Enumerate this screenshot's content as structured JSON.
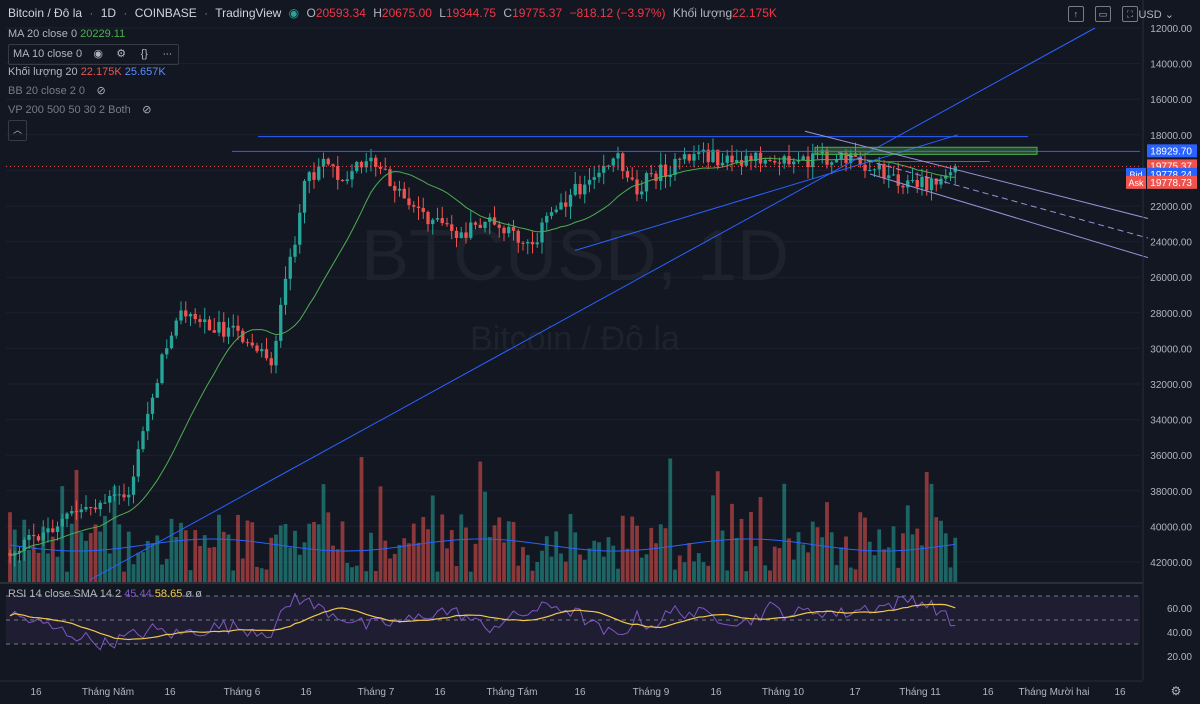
{
  "header": {
    "symbol": "Bitcoin / Đô la",
    "interval": "1D",
    "exchange": "COINBASE",
    "provider": "TradingView",
    "open_label": "O",
    "open": "20593.34",
    "high_label": "H",
    "high": "20675.00",
    "low_label": "L",
    "low": "19344.75",
    "close_label": "C",
    "close": "19775.37",
    "change": "−818.12 (−3.97%)",
    "volume_label": "Khối lượng",
    "volume": "22.175K",
    "currency": "USD"
  },
  "indicators": {
    "ma20": {
      "label": "MA 20 close 0",
      "value": "20229.11"
    },
    "ma10": {
      "label": "MA 10 close 0"
    },
    "vol": {
      "label": "Khối lượng 20",
      "v1": "22.175K",
      "v2": "25.657K"
    },
    "bb": {
      "label": "BB 20 close 2 0"
    },
    "vp": {
      "label": "VP 200 500 50 30 2 Both"
    },
    "rsi": {
      "label": "RSI 14 close SMA 14 2",
      "v1": "45.44",
      "v2": "58.65",
      "v3": "ø",
      "v4": "ø"
    }
  },
  "watermark": {
    "line1": "BTCUSD, 1D",
    "line2": "Bitcoin / Đô la"
  },
  "colors": {
    "up": "#26a69a",
    "down": "#ef5350",
    "ma": "#4caf50",
    "trend": "#2962ff",
    "rsi": "#7e57c2",
    "rsi_ma": "#f2c94c",
    "channel": "#9c8fd8"
  },
  "price_labels": {
    "level": "18929.70",
    "last": "19775.37",
    "bid_label": "Bid",
    "bid": "19778.24",
    "ask_label": "Ask",
    "ask": "19778.73"
  },
  "chart_data": {
    "type": "candlestick",
    "y_axis_inverted": true,
    "ylim": [
      12000,
      43000
    ],
    "y_ticks": [
      "12000.00",
      "14000.00",
      "16000.00",
      "18000.00",
      "20000.00",
      "22000.00",
      "24000.00",
      "26000.00",
      "28000.00",
      "30000.00",
      "32000.00",
      "34000.00",
      "36000.00",
      "38000.00",
      "40000.00",
      "42000.00"
    ],
    "x_ticks": [
      "16",
      "Tháng Năm",
      "16",
      "Tháng 6",
      "16",
      "Tháng 7",
      "16",
      "Tháng Tám",
      "16",
      "Tháng 9",
      "16",
      "Tháng 10",
      "17",
      "Tháng 11",
      "16",
      "Tháng Mười hai",
      "16"
    ],
    "rsi_ticks": [
      "60.00",
      "40.00",
      "20.00"
    ],
    "rsi_ylim": [
      10,
      75
    ],
    "rsi_bands": [
      30,
      70
    ],
    "price_keypoints": [
      [
        0,
        41500
      ],
      [
        15,
        39000
      ],
      [
        25,
        38200
      ],
      [
        30,
        32500
      ],
      [
        35,
        28000
      ],
      [
        45,
        28900
      ],
      [
        50,
        29400
      ],
      [
        55,
        30700
      ],
      [
        58,
        26500
      ],
      [
        62,
        21000
      ],
      [
        66,
        19200
      ],
      [
        70,
        20400
      ],
      [
        75,
        19300
      ],
      [
        80,
        20600
      ],
      [
        85,
        22000
      ],
      [
        90,
        23000
      ],
      [
        95,
        23700
      ],
      [
        100,
        22800
      ],
      [
        105,
        23600
      ],
      [
        110,
        24000
      ],
      [
        115,
        22000
      ],
      [
        120,
        21000
      ],
      [
        124,
        19700
      ],
      [
        128,
        19300
      ],
      [
        132,
        21000
      ],
      [
        135,
        20300
      ],
      [
        140,
        19800
      ],
      [
        145,
        18900
      ],
      [
        150,
        19500
      ],
      [
        155,
        19600
      ],
      [
        160,
        19100
      ],
      [
        165,
        19600
      ],
      [
        170,
        19300
      ],
      [
        175,
        19300
      ],
      [
        180,
        19600
      ],
      [
        185,
        20200
      ],
      [
        190,
        20800
      ],
      [
        195,
        20700
      ],
      [
        199,
        19800
      ]
    ],
    "rsi_keypoints": [
      [
        0,
        55
      ],
      [
        10,
        42
      ],
      [
        20,
        30
      ],
      [
        30,
        42
      ],
      [
        35,
        38
      ],
      [
        45,
        45
      ],
      [
        55,
        40
      ],
      [
        60,
        70
      ],
      [
        65,
        60
      ],
      [
        75,
        45
      ],
      [
        85,
        50
      ],
      [
        90,
        58
      ],
      [
        95,
        55
      ],
      [
        100,
        43
      ],
      [
        110,
        58
      ],
      [
        115,
        62
      ],
      [
        120,
        54
      ],
      [
        124,
        42
      ],
      [
        128,
        36
      ],
      [
        132,
        52
      ],
      [
        135,
        45
      ],
      [
        140,
        58
      ],
      [
        145,
        55
      ],
      [
        150,
        52
      ],
      [
        155,
        48
      ],
      [
        160,
        60
      ],
      [
        165,
        55
      ],
      [
        170,
        58
      ],
      [
        175,
        55
      ],
      [
        180,
        60
      ],
      [
        185,
        62
      ],
      [
        190,
        68
      ],
      [
        195,
        60
      ],
      [
        199,
        44
      ]
    ],
    "candle_count": 200
  }
}
